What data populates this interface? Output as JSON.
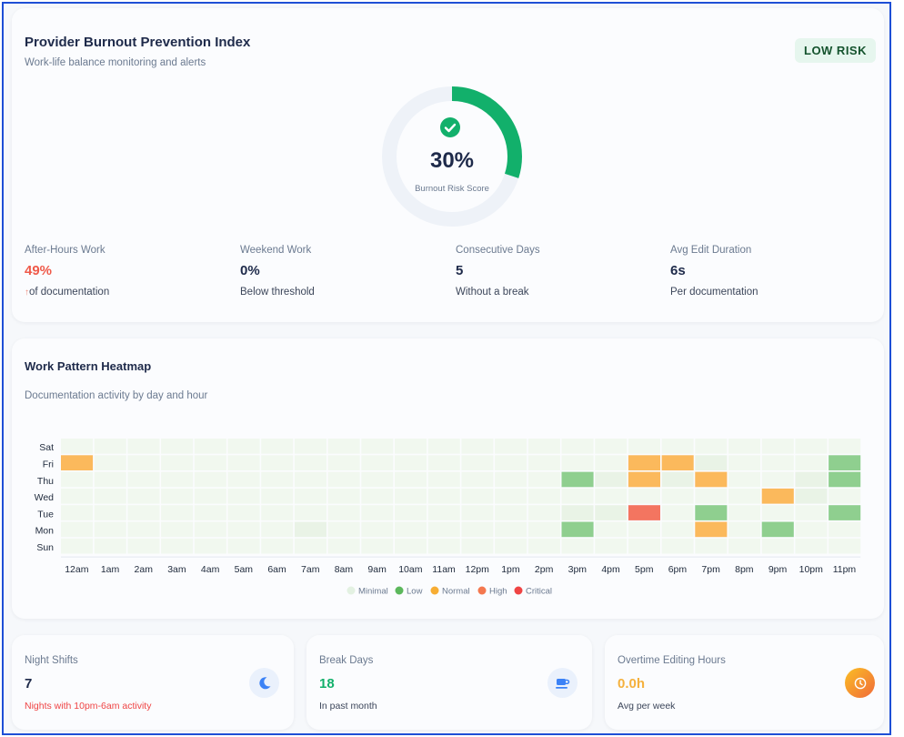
{
  "header": {
    "title": "Provider Burnout Prevention Index",
    "subtitle": "Work-life balance monitoring and alerts",
    "badge": "LOW RISK"
  },
  "gauge": {
    "value": "30%",
    "fraction": 0.3,
    "label": "Burnout Risk Score",
    "color": "#12b06b",
    "track_color": "#eef2f8"
  },
  "stats": [
    {
      "label": "After-Hours Work",
      "value": "49%",
      "note_arrow": "↑",
      "note": "of documentation"
    },
    {
      "label": "Weekend Work",
      "value": "0%",
      "note": "Below threshold"
    },
    {
      "label": "Consecutive Days",
      "value": "5",
      "note": "Without a break"
    },
    {
      "label": "Avg Edit Duration",
      "value": "6s",
      "note": "Per documentation"
    }
  ],
  "heatmap": {
    "title": "Work Pattern Heatmap",
    "subtitle": "Documentation activity by day and hour",
    "chart_data": {
      "type": "heatmap",
      "days": [
        "Sat",
        "Fri",
        "Thu",
        "Wed",
        "Tue",
        "Mon",
        "Sun"
      ],
      "hours": [
        "12am",
        "1am",
        "2am",
        "3am",
        "4am",
        "5am",
        "6am",
        "7am",
        "8am",
        "9am",
        "10am",
        "11am",
        "12pm",
        "1pm",
        "2pm",
        "3pm",
        "4pm",
        "5pm",
        "6pm",
        "7pm",
        "8pm",
        "9pm",
        "10pm",
        "11pm"
      ],
      "levels": [
        "Minimal",
        "Low",
        "Normal",
        "High",
        "Critical"
      ],
      "level_colors": [
        "#eaf5ea",
        "#8fcf8f",
        "#fbb95c",
        "#f37560",
        "#ef4a4a"
      ],
      "cells": {
        "Sat": [
          0,
          0,
          0,
          0,
          0,
          0,
          0,
          0,
          0,
          0,
          0,
          0,
          0,
          0,
          0,
          0,
          0,
          0,
          0,
          0,
          0,
          0,
          0,
          0
        ],
        "Fri": [
          2,
          0,
          0,
          0,
          0,
          0,
          0,
          0,
          0,
          0,
          0,
          0,
          0,
          0,
          0,
          0,
          0,
          2,
          2,
          0.5,
          0,
          0,
          0,
          1
        ],
        "Thu": [
          0,
          0,
          0,
          0,
          0,
          0,
          0,
          0,
          0,
          0,
          0,
          0,
          0,
          0,
          0,
          1,
          0.5,
          2,
          0.5,
          2,
          0,
          0,
          0.5,
          1
        ],
        "Wed": [
          0,
          0,
          0,
          0,
          0,
          0,
          0,
          0,
          0,
          0,
          0,
          0,
          0,
          0,
          0,
          0,
          0,
          0,
          0,
          0,
          0,
          2,
          0.5,
          0
        ],
        "Tue": [
          0,
          0,
          0,
          0,
          0,
          0,
          0,
          0,
          0,
          0,
          0,
          0,
          0,
          0,
          0,
          0.5,
          0.5,
          3,
          0,
          1,
          0,
          0,
          0,
          1
        ],
        "Mon": [
          0,
          0,
          0,
          0,
          0,
          0,
          0,
          0.5,
          0,
          0,
          0,
          0,
          0,
          0,
          0,
          1,
          0,
          0,
          0,
          2,
          0,
          1,
          0,
          0
        ],
        "Sun": [
          0,
          0,
          0,
          0,
          0,
          0,
          0,
          0,
          0,
          0,
          0,
          0,
          0,
          0,
          0,
          0,
          0,
          0,
          0,
          0,
          0,
          0,
          0,
          0
        ]
      }
    }
  },
  "bottom": [
    {
      "label": "Night Shifts",
      "value": "7",
      "note": "Nights with 10pm-6am activity",
      "icon": "moon-icon"
    },
    {
      "label": "Break Days",
      "value": "18",
      "note": "In past month",
      "icon": "coffee-icon"
    },
    {
      "label": "Overtime Editing Hours",
      "value": "0.0h",
      "note": "Avg per week",
      "icon": "clock-icon"
    }
  ]
}
